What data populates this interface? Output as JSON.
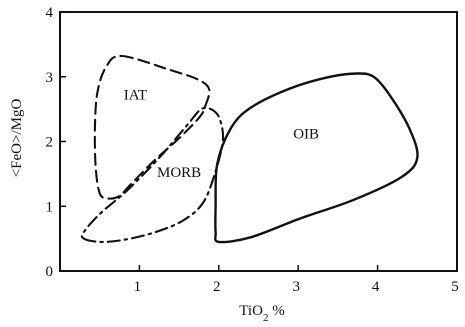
{
  "chart_data": {
    "type": "discrimination-diagram",
    "title": "",
    "xlabel": {
      "text": "TiO",
      "subscript": "2",
      "suffix": " %"
    },
    "ylabel": "<FeO>/MgO",
    "xlim": [
      0,
      5
    ],
    "ylim": [
      0,
      4
    ],
    "xticks": [
      "1",
      "2",
      "3",
      "4",
      "5"
    ],
    "yticks": [
      "0",
      "1",
      "2",
      "3",
      "4"
    ],
    "grid": false,
    "ink_color": "#111111",
    "fields": [
      {
        "name": "IAT",
        "line_style": "dashed",
        "label_at": [
          0.95,
          2.65
        ],
        "outline": [
          [
            0.78,
            3.32
          ],
          [
            1.4,
            3.1
          ],
          [
            1.75,
            2.95
          ],
          [
            1.88,
            2.8
          ],
          [
            1.83,
            2.55
          ],
          [
            1.76,
            2.38
          ],
          [
            1.5,
            2.05
          ],
          [
            1.2,
            1.72
          ],
          [
            0.9,
            1.35
          ],
          [
            0.75,
            1.16
          ],
          [
            0.6,
            1.12
          ],
          [
            0.5,
            1.2
          ],
          [
            0.45,
            1.6
          ],
          [
            0.44,
            2.2
          ],
          [
            0.47,
            2.75
          ],
          [
            0.58,
            3.15
          ],
          [
            0.78,
            3.32
          ]
        ]
      },
      {
        "name": "MORB",
        "line_style": "dash-dot",
        "label_at": [
          1.5,
          1.45
        ],
        "outline": [
          [
            0.3,
            0.5
          ],
          [
            0.5,
            0.45
          ],
          [
            0.8,
            0.48
          ],
          [
            1.2,
            0.6
          ],
          [
            1.55,
            0.78
          ],
          [
            1.8,
            1.05
          ],
          [
            1.95,
            1.5
          ],
          [
            2.05,
            2.0
          ],
          [
            2.02,
            2.32
          ],
          [
            1.93,
            2.48
          ],
          [
            1.78,
            2.5
          ],
          [
            1.6,
            2.25
          ],
          [
            1.25,
            1.75
          ],
          [
            0.85,
            1.25
          ],
          [
            0.5,
            0.88
          ],
          [
            0.3,
            0.6
          ],
          [
            0.3,
            0.5
          ]
        ]
      },
      {
        "name": "OIB",
        "line_style": "solid",
        "label_at": [
          3.1,
          2.05
        ],
        "outline": [
          [
            2.0,
            0.45
          ],
          [
            2.4,
            0.52
          ],
          [
            3.0,
            0.8
          ],
          [
            3.7,
            1.1
          ],
          [
            4.3,
            1.45
          ],
          [
            4.5,
            1.75
          ],
          [
            4.4,
            2.2
          ],
          [
            4.15,
            2.72
          ],
          [
            3.95,
            3.0
          ],
          [
            3.75,
            3.05
          ],
          [
            3.4,
            3.0
          ],
          [
            2.9,
            2.82
          ],
          [
            2.4,
            2.52
          ],
          [
            2.15,
            2.2
          ],
          [
            1.98,
            1.65
          ],
          [
            1.96,
            1.0
          ],
          [
            1.96,
            0.6
          ],
          [
            2.0,
            0.45
          ]
        ]
      }
    ]
  }
}
